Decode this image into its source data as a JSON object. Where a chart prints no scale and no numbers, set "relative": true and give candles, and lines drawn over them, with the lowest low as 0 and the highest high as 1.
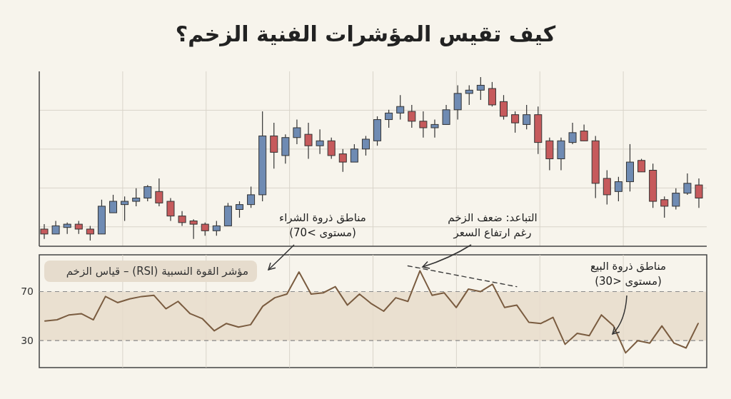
{
  "chart_data": [
    {
      "type": "candlestick",
      "title": "كيف تقيس المؤشرات الفنية الزخم؟",
      "relative": true,
      "grid": true,
      "categories": [
        null,
        null,
        null,
        null,
        null,
        null,
        null,
        null,
        null,
        null,
        null,
        null,
        null,
        null,
        null,
        null,
        null,
        null,
        null,
        null,
        null,
        null,
        null,
        null,
        null,
        null,
        null,
        null,
        null,
        null,
        null,
        null,
        null,
        null,
        null,
        null,
        null,
        null,
        null,
        null,
        null,
        null,
        null,
        null,
        null,
        null,
        null,
        null,
        null,
        null,
        null,
        null,
        null,
        null,
        null,
        null,
        null,
        null
      ],
      "ohlc": [
        [
          0.07,
          0.1,
          0.01,
          0.04
        ],
        [
          0.04,
          0.12,
          0.04,
          0.09
        ],
        [
          0.08,
          0.11,
          0.04,
          0.1
        ],
        [
          0.1,
          0.12,
          0.04,
          0.07
        ],
        [
          0.07,
          0.09,
          0,
          0.04
        ],
        [
          0.04,
          0.25,
          0.04,
          0.21
        ],
        [
          0.17,
          0.28,
          0.17,
          0.24
        ],
        [
          0.22,
          0.27,
          0.12,
          0.24
        ],
        [
          0.24,
          0.32,
          0.21,
          0.26
        ],
        [
          0.26,
          0.34,
          0.24,
          0.33
        ],
        [
          0.3,
          0.38,
          0.21,
          0.23
        ],
        [
          0.24,
          0.26,
          0.12,
          0.15
        ],
        [
          0.15,
          0.18,
          0.09,
          0.11
        ],
        [
          0.12,
          0.13,
          0.01,
          0.1
        ],
        [
          0.1,
          0.11,
          0.03,
          0.06
        ],
        [
          0.06,
          0.12,
          0.03,
          0.09
        ],
        [
          0.09,
          0.23,
          0.09,
          0.21
        ],
        [
          0.19,
          0.24,
          0.14,
          0.22
        ],
        [
          0.22,
          0.33,
          0.2,
          0.28
        ],
        [
          0.28,
          0.79,
          0.24,
          0.64
        ],
        [
          0.64,
          0.72,
          0.44,
          0.54
        ],
        [
          0.52,
          0.65,
          0.47,
          0.63
        ],
        [
          0.63,
          0.74,
          0.59,
          0.69
        ],
        [
          0.65,
          0.72,
          0.5,
          0.58
        ],
        [
          0.58,
          0.68,
          0.53,
          0.61
        ],
        [
          0.61,
          0.63,
          0.5,
          0.52
        ],
        [
          0.53,
          0.56,
          0.42,
          0.48
        ],
        [
          0.48,
          0.59,
          0.48,
          0.56
        ],
        [
          0.56,
          0.64,
          0.52,
          0.62
        ],
        [
          0.61,
          0.76,
          0.58,
          0.74
        ],
        [
          0.74,
          0.8,
          0.69,
          0.78
        ],
        [
          0.78,
          0.89,
          0.74,
          0.82
        ],
        [
          0.79,
          0.83,
          0.69,
          0.73
        ],
        [
          0.73,
          0.79,
          0.63,
          0.69
        ],
        [
          0.69,
          0.74,
          0.63,
          0.71
        ],
        [
          0.71,
          0.83,
          0.71,
          0.8
        ],
        [
          0.8,
          0.95,
          0.74,
          0.9
        ],
        [
          0.9,
          0.95,
          0.83,
          0.92
        ],
        [
          0.92,
          1,
          0.86,
          0.95
        ],
        [
          0.93,
          0.97,
          0.82,
          0.83
        ],
        [
          0.85,
          0.89,
          0.74,
          0.76
        ],
        [
          0.77,
          0.79,
          0.66,
          0.72
        ],
        [
          0.71,
          0.83,
          0.68,
          0.77
        ],
        [
          0.77,
          0.82,
          0.53,
          0.6
        ],
        [
          0.61,
          0.63,
          0.43,
          0.5
        ],
        [
          0.5,
          0.63,
          0.43,
          0.61
        ],
        [
          0.6,
          0.72,
          0.59,
          0.66
        ],
        [
          0.67,
          0.71,
          0.61,
          0.61
        ],
        [
          0.61,
          0.64,
          0.26,
          0.35
        ],
        [
          0.38,
          0.43,
          0.22,
          0.28
        ],
        [
          0.3,
          0.39,
          0.24,
          0.36
        ],
        [
          0.36,
          0.59,
          0.3,
          0.48
        ],
        [
          0.49,
          0.5,
          0.42,
          0.42
        ],
        [
          0.43,
          0.47,
          0.2,
          0.24
        ],
        [
          0.25,
          0.27,
          0.14,
          0.21
        ],
        [
          0.21,
          0.32,
          0.19,
          0.29
        ],
        [
          0.29,
          0.41,
          0.28,
          0.35
        ],
        [
          0.34,
          0.38,
          0.2,
          0.26
        ]
      ],
      "colors": [
        "#c65a5c",
        "#6f8bb3",
        "#6f8bb3",
        "#c65a5c",
        "#c65a5c",
        "#6f8bb3",
        "#6f8bb3",
        "#6f8bb3",
        "#6f8bb3",
        "#6f8bb3",
        "#c65a5c",
        "#c65a5c",
        "#c65a5c",
        "#c65a5c",
        "#c65a5c",
        "#6f8bb3",
        "#6f8bb3",
        "#6f8bb3",
        "#6f8bb3",
        "#6f8bb3",
        "#c65a5c",
        "#6f8bb3",
        "#6f8bb3",
        "#c65a5c",
        "#6f8bb3",
        "#c65a5c",
        "#c65a5c",
        "#6f8bb3",
        "#6f8bb3",
        "#6f8bb3",
        "#6f8bb3",
        "#6f8bb3",
        "#c65a5c",
        "#c65a5c",
        "#6f8bb3",
        "#6f8bb3",
        "#6f8bb3",
        "#6f8bb3",
        "#6f8bb3",
        "#c65a5c",
        "#c65a5c",
        "#c65a5c",
        "#6f8bb3",
        "#c65a5c",
        "#c65a5c",
        "#6f8bb3",
        "#6f8bb3",
        "#c65a5c",
        "#c65a5c",
        "#c65a5c",
        "#6f8bb3",
        "#6f8bb3",
        "#c65a5c",
        "#c65a5c",
        "#c65a5c",
        "#6f8bb3",
        "#6f8bb3",
        "#c65a5c"
      ]
    },
    {
      "type": "line",
      "title": "مؤشر القوة النسبية (RSI) – قياس الزخم",
      "grid": "x",
      "ylim": [
        8,
        100
      ],
      "yticks": [
        30,
        70
      ],
      "categories": [
        null,
        null,
        null,
        null,
        null,
        null,
        null,
        null,
        null,
        null,
        null,
        null,
        null,
        null,
        null,
        null,
        null,
        null,
        null,
        null,
        null,
        null,
        null,
        null,
        null,
        null,
        null,
        null,
        null,
        null,
        null,
        null,
        null,
        null,
        null,
        null,
        null,
        null,
        null,
        null,
        null,
        null,
        null,
        null,
        null,
        null,
        null,
        null,
        null,
        null,
        null,
        null,
        null,
        null,
        null
      ],
      "series": [
        {
          "color": "#7a5c40",
          "values": [
            46,
            47,
            51,
            52,
            47,
            66,
            61,
            64,
            66,
            67,
            56,
            62,
            52,
            48,
            38,
            44,
            41,
            43,
            58,
            65,
            68,
            86,
            68,
            69,
            74,
            59,
            68,
            60,
            54,
            65,
            62,
            87,
            67,
            69,
            57,
            72,
            70,
            76,
            57,
            59,
            45,
            44,
            49,
            27,
            36,
            34,
            51,
            42,
            20,
            30,
            28,
            42,
            28,
            24,
            44
          ]
        },
        {
          "type": "line",
          "color": "#3a3a3a",
          "line_style": "dashed",
          "values": [
            null,
            null,
            null,
            null,
            null,
            null,
            null,
            null,
            null,
            null,
            null,
            null,
            null,
            null,
            null,
            null,
            null,
            null,
            null,
            null,
            null,
            null,
            null,
            null,
            null,
            null,
            null,
            null,
            null,
            null,
            91,
            null,
            null,
            null,
            null,
            null,
            null,
            null,
            null,
            74,
            null,
            null,
            null,
            null,
            null,
            null,
            null,
            null,
            null,
            null,
            null,
            null,
            null,
            null,
            null
          ]
        }
      ],
      "bands": [
        {
          "axis": "y",
          "from": 30,
          "to": 70,
          "color": "#e8dccb"
        }
      ],
      "ref_lines": [
        {
          "axis": "y",
          "value": 70,
          "line_style": "dashed",
          "color": "#8a8a8a"
        },
        {
          "axis": "y",
          "value": 30,
          "line_style": "dashed",
          "color": "#8a8a8a"
        }
      ],
      "annotations": [
        "مناطق ذروة الشراء\n(مستوى >70)",
        "التباعد: ضعف الزخم\nرغم ارتفاع السعر",
        "مناطق ذروة البيع\n(مستوى <30)"
      ]
    }
  ]
}
